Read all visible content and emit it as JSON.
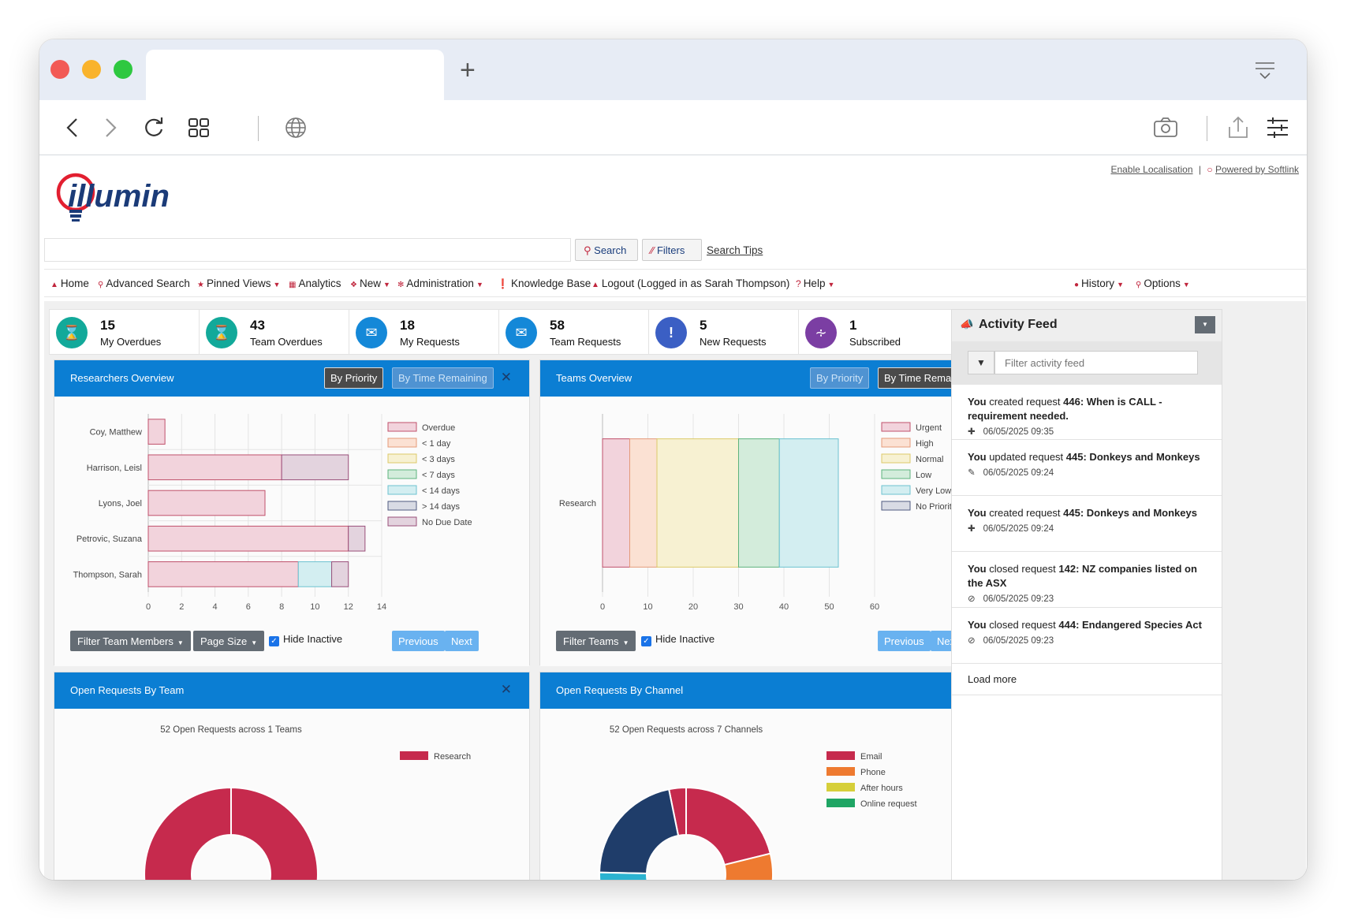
{
  "browser": {
    "new_tab": "+"
  },
  "header": {
    "enable_localisation": "Enable Localisation",
    "separator": "|",
    "powered_by": "Powered by Softlink",
    "logo_text": "illumin"
  },
  "search": {
    "search_label": "Search",
    "filters_label": "Filters",
    "tips_label": "Search Tips"
  },
  "nav": {
    "home": "Home",
    "advanced_search": "Advanced Search",
    "pinned_views": "Pinned Views",
    "analytics": "Analytics",
    "new": "New",
    "administration": "Administration",
    "knowledge_base": "Knowledge Base",
    "logout": "Logout (Logged in as Sarah Thompson)",
    "help": "Help",
    "history": "History",
    "options": "Options"
  },
  "stats": [
    {
      "value": "15",
      "label": "My Overdues",
      "icon": "hourglass-icon",
      "color": "#12a99a"
    },
    {
      "value": "43",
      "label": "Team Overdues",
      "icon": "hourglass-icon",
      "color": "#12a99a"
    },
    {
      "value": "18",
      "label": "My Requests",
      "icon": "chat-icon",
      "color": "#1488d8"
    },
    {
      "value": "58",
      "label": "Team Requests",
      "icon": "chat-icon",
      "color": "#1488d8"
    },
    {
      "value": "5",
      "label": "New Requests",
      "icon": "exclamation-icon",
      "color": "#3b5fc4"
    },
    {
      "value": "1",
      "label": "Subscribed",
      "icon": "rss-icon",
      "color": "#7b3ea3"
    }
  ],
  "researchers_panel": {
    "title": "Researchers Overview",
    "by_priority": "By Priority",
    "by_time": "By Time Remaining",
    "close": "✕",
    "filter_members": "Filter Team Members",
    "page_size": "Page Size",
    "hide_inactive": "Hide Inactive",
    "previous": "Previous",
    "next": "Next"
  },
  "teams_panel": {
    "title": "Teams Overview",
    "by_priority": "By Priority",
    "by_time": "By Time Remaining",
    "close": "✕",
    "filter_teams": "Filter Teams",
    "hide_inactive": "Hide Inactive",
    "previous": "Previous",
    "next": "Next"
  },
  "team_requests_panel": {
    "title": "Open Requests By Team",
    "close": "✕"
  },
  "channel_requests_panel": {
    "title": "Open Requests By Channel",
    "close": "✕"
  },
  "feed": {
    "title": "Activity Feed",
    "filter_placeholder": "Filter activity feed",
    "load_more": "Load more",
    "items": [
      {
        "actor": "You",
        "action": " created request ",
        "subject": "446: When is CALL - requirement needed.",
        "time": "06/05/2025 09:35",
        "icon": "plus-icon"
      },
      {
        "actor": "You",
        "action": " updated request ",
        "subject": "445: Donkeys and Monkeys",
        "time": "06/05/2025 09:24",
        "icon": "pencil-icon"
      },
      {
        "actor": "You",
        "action": " created request ",
        "subject": "445: Donkeys and Monkeys",
        "time": "06/05/2025 09:24",
        "icon": "plus-icon"
      },
      {
        "actor": "You",
        "action": " closed request ",
        "subject": "142: NZ companies listed on the ASX",
        "time": "06/05/2025 09:23",
        "icon": "closed-icon"
      },
      {
        "actor": "You",
        "action": " closed request ",
        "subject": "444: Endangered Species Act",
        "time": "06/05/2025 09:23",
        "icon": "closed-icon"
      }
    ]
  },
  "colors": {
    "accent": "#0b7ed3",
    "brand_red": "#c0263d",
    "brand_navy": "#1b3b78"
  },
  "chart_data": [
    {
      "type": "bar",
      "orientation": "horizontal",
      "stacked": true,
      "categories": [
        "Coy, Matthew",
        "Harrison, Leisl",
        "Lyons, Joel",
        "Petrovic, Suzana",
        "Thompson, Sarah"
      ],
      "series": [
        {
          "name": "Overdue",
          "values": [
            1,
            8,
            7,
            12,
            9
          ],
          "fill": "#f2d3dc",
          "stroke": "#c0506b"
        },
        {
          "name": "< 1 day",
          "values": [
            0,
            0,
            0,
            0,
            0
          ],
          "fill": "#fbe1d3",
          "stroke": "#e49a7a"
        },
        {
          "name": "< 3 days",
          "values": [
            0,
            0,
            0,
            0,
            0
          ],
          "fill": "#f7f1d2",
          "stroke": "#dcc96a"
        },
        {
          "name": "< 7 days",
          "values": [
            0,
            0,
            0,
            0,
            0
          ],
          "fill": "#d3ecdb",
          "stroke": "#5db37c"
        },
        {
          "name": "< 14 days",
          "values": [
            0,
            0,
            0,
            0,
            2
          ],
          "fill": "#d3eef1",
          "stroke": "#6cc2d0"
        },
        {
          "name": "> 14 days",
          "values": [
            0,
            0,
            0,
            0,
            0
          ],
          "fill": "#d8dbe4",
          "stroke": "#4f5b80"
        },
        {
          "name": "No Due Date",
          "values": [
            0,
            4,
            0,
            1,
            1
          ],
          "fill": "#e3d3de",
          "stroke": "#9a4f7a"
        }
      ],
      "xticks": [
        "0",
        "2",
        "4",
        "6",
        "8",
        "10",
        "12",
        "14"
      ],
      "xlim": [
        0,
        14
      ],
      "legend": "right",
      "grid": true
    },
    {
      "type": "bar",
      "orientation": "horizontal",
      "stacked": true,
      "categories": [
        "Research"
      ],
      "series": [
        {
          "name": "Urgent",
          "values": [
            6
          ],
          "fill": "#f2d3dc",
          "stroke": "#c0506b"
        },
        {
          "name": "High",
          "values": [
            6
          ],
          "fill": "#fbe1d3",
          "stroke": "#e49a7a"
        },
        {
          "name": "Normal",
          "values": [
            18
          ],
          "fill": "#f7f1d2",
          "stroke": "#dcc96a"
        },
        {
          "name": "Low",
          "values": [
            9
          ],
          "fill": "#d3ecdb",
          "stroke": "#5db37c"
        },
        {
          "name": "Very Low",
          "values": [
            13
          ],
          "fill": "#d3eef1",
          "stroke": "#6cc2d0"
        },
        {
          "name": "No Priority",
          "values": [
            0
          ],
          "fill": "#d8dbe4",
          "stroke": "#4f5b80"
        }
      ],
      "xticks": [
        "0",
        "10",
        "20",
        "30",
        "40",
        "50",
        "60"
      ],
      "xlim": [
        0,
        60
      ],
      "legend": "right",
      "grid": true
    },
    {
      "type": "pie",
      "donut": true,
      "title": "52 Open Requests across 1 Teams",
      "categories": [
        "Research"
      ],
      "values": [
        52
      ],
      "colors": [
        "#c62a4d"
      ],
      "legend": "right"
    },
    {
      "type": "pie",
      "donut": true,
      "title": "52 Open Requests across 7 Channels",
      "categories": [
        "Email",
        "Phone",
        "After hours",
        "Online request"
      ],
      "values": [
        11,
        7,
        0,
        0
      ],
      "colors": [
        "#c62a4d",
        "#ee7a30",
        "#d6cf3a",
        "#1fa564"
      ],
      "legend": "right"
    }
  ]
}
